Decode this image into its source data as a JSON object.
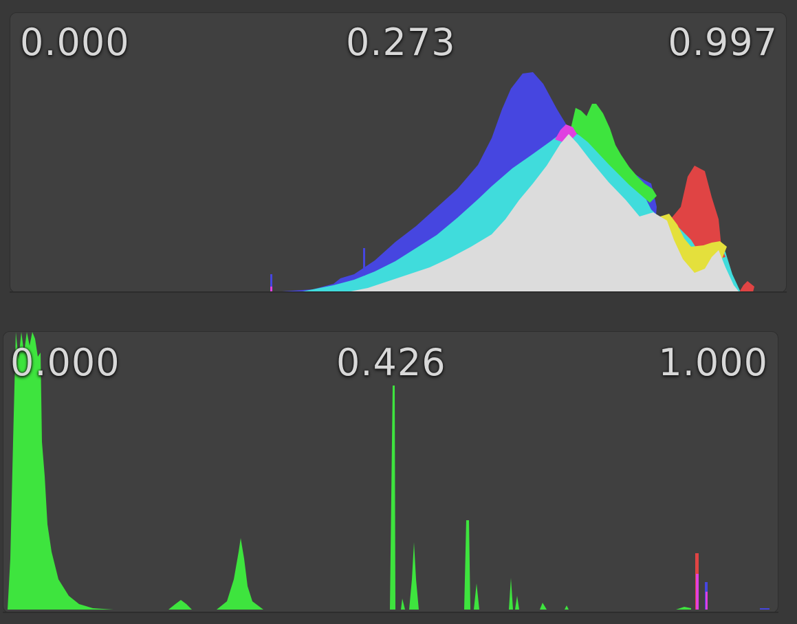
{
  "histograms": [
    {
      "min_label": "0.000",
      "mid_label": "0.273",
      "max_label": "0.997",
      "colors": {
        "blue": "#4646e0",
        "cyan": "#40dcdc",
        "green": "#3ee43e",
        "magenta": "#e040e0",
        "red": "#e04444",
        "yellow": "#e4e03c",
        "white": "#dcdcdc"
      }
    },
    {
      "min_label": "0.000",
      "mid_label": "0.426",
      "max_label": "1.000",
      "colors": {
        "green": "#3ee43e",
        "red": "#e04444",
        "magenta": "#e040e0",
        "blue": "#4646e0"
      }
    }
  ]
}
